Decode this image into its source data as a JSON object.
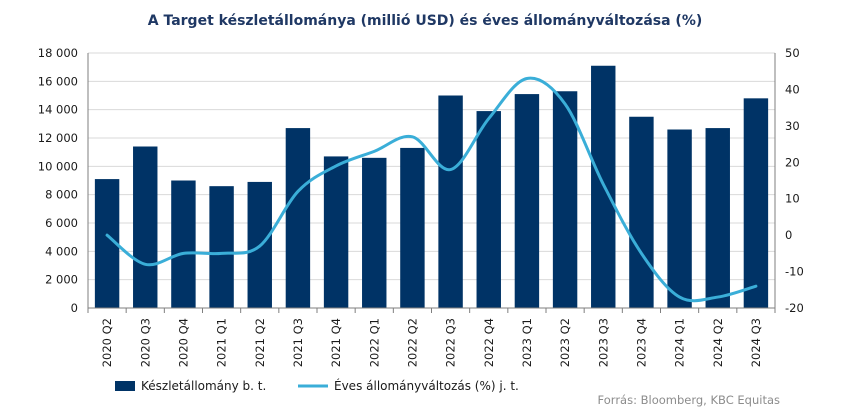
{
  "chart_data": {
    "type": "bar",
    "title": "A Target készletállománya (millió USD) és éves állományváltozása (%)",
    "categories": [
      "2020 Q2",
      "2020 Q3",
      "2020 Q4",
      "2021 Q1",
      "2021 Q2",
      "2021 Q3",
      "2021 Q4",
      "2022 Q1",
      "2022 Q2",
      "2022 Q3",
      "2022 Q4",
      "2023 Q1",
      "2023 Q2",
      "2023 Q3",
      "2023 Q4",
      "2024 Q1",
      "2024 Q2",
      "2024 Q3"
    ],
    "series": [
      {
        "name": "Készletállomány b. t.",
        "type": "bar",
        "axis": "left",
        "color": "#003366",
        "values": [
          9100,
          11400,
          9000,
          8600,
          8900,
          12700,
          10700,
          10600,
          11300,
          15000,
          13900,
          15100,
          15300,
          17100,
          13500,
          12600,
          12700,
          14800
        ]
      },
      {
        "name": "Éves állományváltozás (%) j. t.",
        "type": "line",
        "axis": "right",
        "color": "#3aaed8",
        "smooth": true,
        "values": [
          0,
          -8,
          -5,
          -5,
          -3,
          12,
          19,
          23,
          27,
          18,
          32,
          43,
          36,
          14,
          -5,
          -17,
          -17,
          -14
        ]
      }
    ],
    "y_left": {
      "min": 0,
      "max": 18000,
      "step": 2000,
      "tick_labels": [
        "0",
        "2 000",
        "4 000",
        "6 000",
        "8 000",
        "10 000",
        "12 000",
        "14 000",
        "16 000",
        "18 000"
      ]
    },
    "y_right": {
      "min": -20,
      "max": 50,
      "step": 10,
      "tick_labels": [
        "-20",
        "-10",
        "0",
        "10",
        "20",
        "30",
        "40",
        "50"
      ]
    },
    "grid": true,
    "legend_position": "bottom-left",
    "source": "Forrás: Bloomberg, KBC Equitas"
  }
}
